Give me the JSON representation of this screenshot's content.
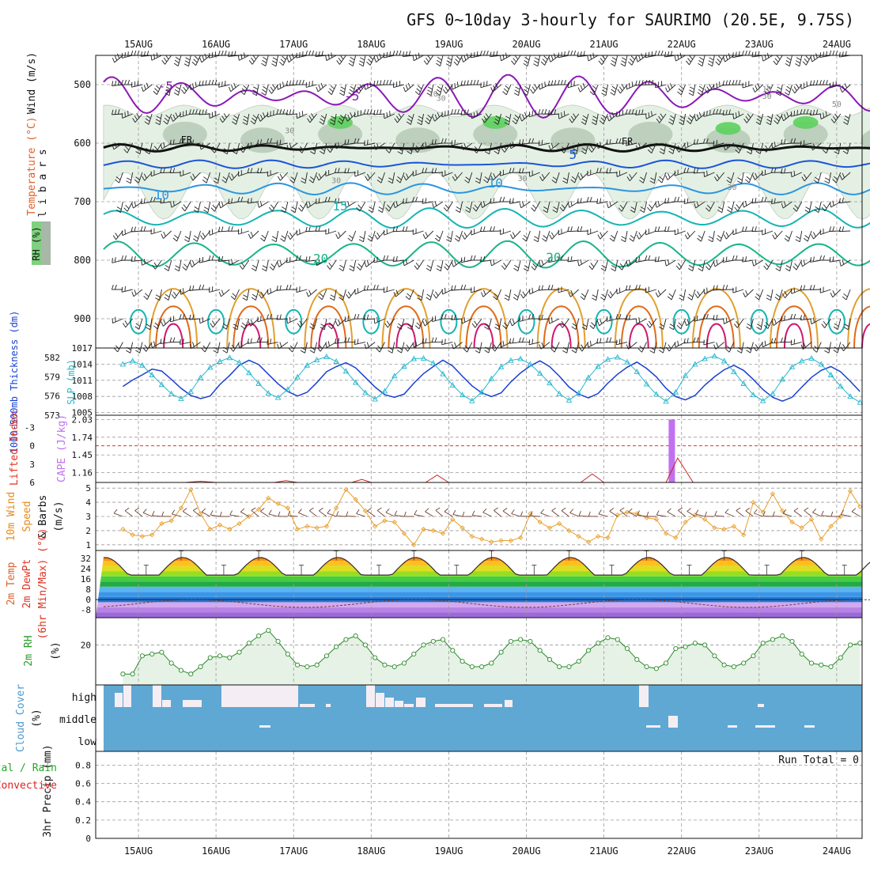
{
  "chart_data": {
    "type": "meteogram",
    "title": "GFS 0~10day 3-hourly for SAURIMO (20.5E, 9.75S)",
    "dates": [
      "15AUG",
      "16AUG",
      "17AUG",
      "18AUG",
      "19AUG",
      "20AUG",
      "21AUG",
      "22AUG",
      "23AUG",
      "24AUG"
    ],
    "x_range_days": [
      0,
      9.76
    ],
    "colors": {
      "rh_fill": "#e4f0e4",
      "rh_dark": "#9cb49c",
      "temp_neg": "#8b18b8",
      "temp_0": "#111111",
      "temp_5": "#1a55d8",
      "temp_10": "#2a96e0",
      "temp_15": "#16b4b4",
      "temp_20": "#18b48a",
      "temp_25": "#e0a030",
      "temp_30": "#e06a18",
      "temp_35": "#d01870",
      "cloud": "#5fa8d3",
      "precip_total": "#22aa22",
      "precip_conv": "#dd2222"
    },
    "panels": {
      "upper_air": {
        "ylabel_main": "m i l l i b a r s",
        "ylabel_legend": [
          "Wind (m/s)",
          "Temperature (°C)"
        ],
        "rh_legend": "RH (%)",
        "yticks": [
          500,
          600,
          700,
          800,
          900
        ],
        "ylim": [
          950,
          450
        ],
        "freezing_label": "FR",
        "contour_labels": [
          {
            "text": "-5",
            "day": 0.35,
            "p": 510
          },
          {
            "text": "-5",
            "day": 2.75,
            "p": 527
          },
          {
            "text": "5",
            "day": 5.6,
            "p": 627
          },
          {
            "text": "10",
            "day": 0.3,
            "p": 696
          },
          {
            "text": "10",
            "day": 4.6,
            "p": 676
          },
          {
            "text": "15",
            "day": 2.6,
            "p": 715
          },
          {
            "text": "20",
            "day": 2.35,
            "p": 805
          },
          {
            "text": "20",
            "day": 5.35,
            "p": 803
          },
          {
            "text": "10",
            "day": 3.8,
            "p": 520
          },
          {
            "text": "30",
            "day": 3.9,
            "p": 528
          },
          {
            "text": "10",
            "day": 8.1,
            "p": 512
          },
          {
            "text": "30",
            "day": 8.1,
            "p": 524
          },
          {
            "text": "50",
            "day": 9.0,
            "p": 538
          },
          {
            "text": "30",
            "day": 1.95,
            "p": 583
          },
          {
            "text": "30",
            "day": 2.55,
            "p": 668
          },
          {
            "text": "30",
            "day": 4.95,
            "p": 665
          },
          {
            "text": "30",
            "day": 7.65,
            "p": 680
          }
        ],
        "isotherms": [
          {
            "t": -5,
            "base": 520,
            "amp": 15,
            "jit": 22
          },
          {
            "t": 0,
            "base": 608,
            "amp": 3,
            "jit": 3
          },
          {
            "t": 5,
            "base": 636,
            "amp": 4,
            "jit": 3
          },
          {
            "t": 10,
            "base": 678,
            "amp": 6,
            "jit": 4
          },
          {
            "t": 15,
            "base": 728,
            "amp": 14,
            "jit": 3
          },
          {
            "t": 20,
            "base": 790,
            "amp": 20,
            "jit": 3
          }
        ]
      },
      "slp_thickness": {
        "ylabel_left": "1000-500mb Thickness (dm)",
        "ylabel_right": "SLP (mb)",
        "thickness_ticks": [
          573,
          576,
          579,
          582
        ],
        "slp_ticks": [
          1005,
          1008,
          1011,
          1014,
          1017
        ],
        "thickness_ylim": [
          573,
          583.5
        ],
        "slp_ylim": [
          1004.5,
          1017
        ],
        "slp": [
          1014.0,
          1014.6,
          1013.8,
          1012.0,
          1010.2,
          1008.5,
          1007.6,
          1008.9,
          1011.5,
          1013.4,
          1014.5,
          1015.2,
          1014.3,
          1012.4,
          1010.4,
          1008.6,
          1007.8,
          1009.3,
          1011.6,
          1013.8,
          1014.8,
          1015.4,
          1014.5,
          1012.7,
          1010.6,
          1008.7,
          1007.5,
          1009.0,
          1011.8,
          1013.6,
          1015.0,
          1015.1,
          1014.2,
          1012.2,
          1010.1,
          1008.3,
          1007.2,
          1008.8,
          1011.3,
          1013.5,
          1014.7,
          1015.0,
          1014.0,
          1012.3,
          1010.5,
          1008.5,
          1007.3,
          1008.6,
          1011.5,
          1013.6,
          1014.9,
          1015.3,
          1014.4,
          1012.6,
          1010.3,
          1008.4,
          1007.1,
          1008.8,
          1011.9,
          1014.0,
          1015.0,
          1015.5,
          1014.6,
          1012.6,
          1010.4,
          1008.3,
          1007.2,
          1008.5,
          1011.2,
          1013.5,
          1014.6,
          1015.1,
          1014.0,
          1012.0,
          1009.9,
          1008.0,
          1006.9,
          1008.4,
          1011.0,
          1013.4
        ],
        "thickness": [
          577.5,
          578.5,
          579.3,
          580.2,
          579.9,
          578.6,
          577.2,
          576.1,
          575.6,
          576.0,
          577.8,
          579.2,
          580.8,
          581.6,
          580.9,
          579.4,
          577.9,
          576.7,
          576.0,
          576.6,
          578.1,
          579.8,
          580.6,
          581.2,
          580.4,
          578.9,
          577.4,
          576.2,
          575.8,
          576.3,
          578.0,
          579.5,
          580.6,
          581.6,
          580.7,
          579.1,
          577.6,
          576.5,
          575.9,
          576.5,
          578.2,
          579.6,
          580.7,
          581.5,
          580.6,
          579.1,
          577.4,
          576.3,
          575.7,
          576.4,
          578.0,
          579.4,
          580.5,
          581.3,
          580.3,
          579.0,
          577.2,
          575.9,
          575.4,
          576.1,
          577.7,
          579.0,
          580.1,
          580.8,
          580.0,
          578.6,
          577.0,
          575.8,
          575.2,
          575.8,
          577.4,
          578.9,
          580.0,
          580.6,
          579.8,
          578.3,
          576.7,
          575.4,
          574.7,
          575.3
        ]
      },
      "cape_li": {
        "ylabel_left": "Lifted Index",
        "ylabel_right": "CAPE (J/kg)",
        "li_ticks": [
          -3,
          0,
          3,
          6
        ],
        "li_tick_labels": [
          "-3",
          "0",
          "3",
          "6"
        ],
        "li_ylim": [
          6,
          -5
        ],
        "cape_ticks": [
          1.16,
          1.45,
          1.74,
          2.03
        ],
        "cape_ylim": [
          1.0,
          2.1
        ],
        "cape_bar": {
          "day": 6.875,
          "value": 2.03
        },
        "li_bumps": [
          {
            "start": 0.6,
            "peak": 0.8,
            "end": 1.0,
            "value": 5.8
          },
          {
            "start": 1.75,
            "peak": 1.9,
            "end": 2.05,
            "value": 5.7
          },
          {
            "start": 2.75,
            "peak": 2.88,
            "end": 3.0,
            "value": 5.5
          },
          {
            "start": 3.7,
            "peak": 3.85,
            "end": 4.0,
            "value": 4.8
          },
          {
            "start": 5.7,
            "peak": 5.85,
            "end": 6.0,
            "value": 4.6
          },
          {
            "start": 6.8,
            "peak": 6.95,
            "end": 7.15,
            "value": 2.0
          }
        ]
      },
      "wind10m": {
        "ylabel": [
          "10m Wind",
          "Speed",
          "& Barbs",
          "(m/s)"
        ],
        "yticks": [
          1,
          2,
          3,
          4,
          5
        ],
        "ylim": [
          0.6,
          5.4
        ],
        "speed": [
          2.1,
          1.7,
          1.6,
          1.7,
          2.5,
          2.7,
          3.6,
          4.9,
          3.2,
          2.1,
          2.4,
          2.1,
          2.5,
          3.0,
          3.5,
          4.3,
          3.9,
          3.6,
          2.1,
          2.3,
          2.2,
          2.3,
          3.6,
          4.9,
          4.2,
          3.4,
          2.3,
          2.7,
          2.6,
          1.8,
          1.0,
          2.1,
          2.0,
          1.8,
          2.8,
          2.2,
          1.6,
          1.4,
          1.2,
          1.3,
          1.3,
          1.5,
          3.2,
          2.6,
          2.2,
          2.5,
          2.0,
          1.6,
          1.2,
          1.6,
          1.5,
          3.1,
          3.3,
          3.2,
          2.9,
          2.8,
          1.8,
          1.5,
          2.6,
          3.1,
          2.8,
          2.2,
          2.1,
          2.3,
          1.7,
          4.0,
          3.3,
          4.6,
          3.4,
          2.6,
          2.2,
          2.8,
          1.4,
          2.3,
          3.0,
          4.8,
          3.7,
          2.8,
          2.9,
          2.5
        ]
      },
      "temp2m": {
        "ylabel": [
          "2m Temp",
          "2m DewPt",
          "(6hr Min/Max) (°C)"
        ],
        "yticks": [
          -8,
          0,
          8,
          16,
          24,
          32
        ],
        "ylim": [
          -14,
          38
        ],
        "band_colors": [
          "#9a6ad8",
          "#b884e4",
          "#d4a8f0",
          "#1f78d8",
          "#3c96e8",
          "#5ab4f0",
          "#22aa44",
          "#44cc44",
          "#99dd22",
          "#dddd22",
          "#ffc020",
          "#ff9010",
          "#f06010",
          "#e02810",
          "#c01010"
        ],
        "temp_min": 19,
        "temp_max": 35,
        "dewpt_base": -3,
        "dewpt_amp": 3
      },
      "rh2m": {
        "ylabel": [
          "2m RH",
          "(%)"
        ],
        "yticks": [
          20
        ],
        "ylim": [
          -2,
          35
        ],
        "values": [
          4,
          4,
          14,
          15,
          16,
          10,
          6,
          4,
          8,
          13,
          14,
          13,
          16,
          21,
          25,
          28,
          22,
          15,
          9,
          8,
          9,
          14,
          19,
          23,
          25,
          20,
          13,
          9,
          8,
          10,
          15,
          20,
          22,
          23,
          17,
          11,
          8,
          8,
          10,
          16,
          22,
          23,
          22,
          17,
          12,
          8,
          8,
          11,
          17,
          21,
          24,
          23,
          18,
          12,
          8,
          7,
          10,
          18,
          19,
          21,
          20,
          14,
          9,
          8,
          10,
          14,
          21,
          23,
          25,
          22,
          15,
          10,
          9,
          8,
          13,
          20,
          21,
          18,
          14,
          16
        ]
      },
      "cloud": {
        "ylabel": [
          "Cloud Cover",
          "(%)"
        ],
        "levels": [
          "high",
          "middle",
          "low"
        ]
      },
      "precip": {
        "ylabel": [
          "3hr Precip (mm)"
        ],
        "series_labels": [
          "Total / Rain",
          "Convective"
        ],
        "yticks": [
          0,
          0.2,
          0.4,
          0.6,
          0.8
        ],
        "ylim": [
          0,
          0.95
        ],
        "run_total_label": "Run Total = 0"
      }
    }
  }
}
